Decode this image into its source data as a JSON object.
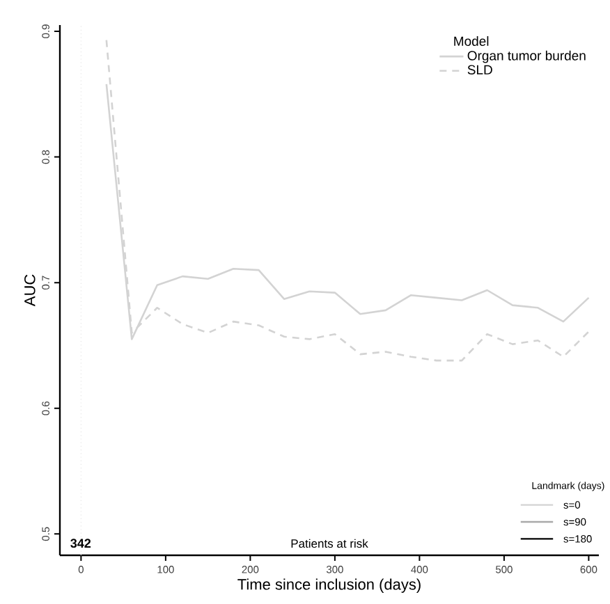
{
  "chart_data": {
    "type": "line",
    "xlabel": "Time since inclusion (days)",
    "ylabel": "AUC",
    "legend_title": "Model",
    "legend": "top right",
    "x": [
      30,
      60,
      90,
      120,
      150,
      180,
      210,
      240,
      270,
      300,
      330,
      360,
      390,
      420,
      450,
      480,
      510,
      540,
      570,
      600
    ],
    "series": [
      {
        "name": "Organ tumor burden",
        "color": "#d3d3d3",
        "line_style": "solid",
        "values": [
          0.858,
          0.655,
          0.698,
          0.705,
          0.703,
          0.711,
          0.71,
          0.687,
          0.693,
          0.692,
          0.675,
          0.678,
          0.69,
          0.688,
          0.686,
          0.694,
          0.682,
          0.68,
          0.669,
          0.688
        ]
      },
      {
        "name": "SLD",
        "color": "#d3d3d3",
        "line_style": "dashed",
        "values": [
          0.893,
          0.66,
          0.68,
          0.667,
          0.66,
          0.669,
          0.666,
          0.657,
          0.655,
          0.659,
          0.643,
          0.645,
          0.641,
          0.638,
          0.638,
          0.659,
          0.651,
          0.654,
          0.641,
          0.661
        ]
      }
    ],
    "xlim": [
      -25,
      612
    ],
    "ylim": [
      0.483,
      0.905
    ],
    "xticks": [
      0,
      100,
      200,
      300,
      400,
      500,
      600
    ],
    "yticks": [
      0.5,
      0.6,
      0.7,
      0.8,
      0.9
    ],
    "grid": false,
    "marker": "none",
    "ref_lines": [
      {
        "axis": "x",
        "value": 0,
        "color": "#e6e6e6",
        "line_style": "dotted"
      }
    ],
    "annotations": [
      "342",
      "Patients at risk",
      "Landmark (days)",
      "s=0",
      "s=90",
      "s=180"
    ]
  }
}
